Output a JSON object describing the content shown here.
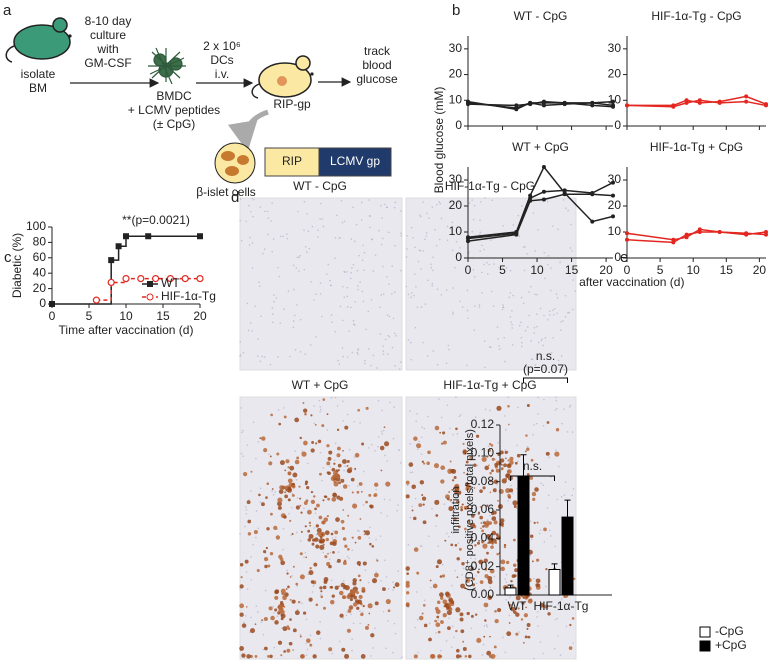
{
  "panel_labels": [
    "a",
    "b",
    "c",
    "d",
    "e"
  ],
  "diagram": {
    "isolate": [
      "isolate",
      "BM"
    ],
    "culture": [
      "8-10 day",
      "culture",
      "with",
      "GM-CSF"
    ],
    "bmdc": [
      "BMDC",
      "+ LCMV peptides",
      "(± CpG)"
    ],
    "transfer": [
      "2 x 10⁶",
      "DCs",
      "i.v."
    ],
    "mouse": "RIP-gp",
    "readout": [
      "track",
      "blood",
      "glucose"
    ],
    "islet": "β-islet cells",
    "construct": [
      "RIP",
      "LCMV gp"
    ]
  },
  "panel_b": {
    "y_label": "Blood glucose (mM)",
    "x_label": "Time after vaccination (d)"
  },
  "histology": {
    "titles": [
      "WT - CpG",
      "HIF-1α-Tg - CpG",
      "WT + CpG",
      "HIF-1α-Tg + CpG"
    ]
  },
  "chart_data": [
    {
      "type": "line",
      "title": "WT - CpG",
      "x": [
        0,
        7,
        9,
        11,
        14,
        18,
        21
      ],
      "series": [
        {
          "color": "#222222",
          "values": [
            9,
            7,
            9,
            9,
            9,
            9,
            9.5
          ]
        },
        {
          "color": "#222222",
          "values": [
            8.5,
            8,
            8.5,
            9.5,
            9,
            8,
            7.5
          ]
        },
        {
          "color": "#222222",
          "values": [
            9.5,
            6.5,
            9,
            8,
            8.5,
            9,
            8
          ]
        }
      ],
      "xlim": [
        0,
        21
      ],
      "ylim": [
        0,
        35
      ],
      "xticks": [
        0,
        5,
        10,
        15,
        20
      ],
      "yticks": [
        0,
        10,
        20,
        30
      ],
      "xticklabels": false
    },
    {
      "type": "line",
      "title": "HIF-1α-Tg - CpG",
      "x": [
        0,
        7,
        9,
        11,
        14,
        18,
        21
      ],
      "series": [
        {
          "color": "#e3261f",
          "values": [
            8,
            8,
            10,
            9,
            9.5,
            11.5,
            8.5
          ]
        },
        {
          "color": "#e3261f",
          "values": [
            8,
            7.5,
            9,
            10,
            9,
            9.5,
            8
          ]
        }
      ],
      "xlim": [
        0,
        21
      ],
      "ylim": [
        0,
        35
      ],
      "xticks": [
        0,
        5,
        10,
        15,
        20
      ],
      "yticks": [
        0,
        10,
        20,
        30
      ],
      "xticklabels": false
    },
    {
      "type": "line",
      "title": "WT + CpG",
      "x": [
        0,
        7,
        9,
        11,
        14,
        18,
        21
      ],
      "series": [
        {
          "color": "#222222",
          "values": [
            8,
            10,
            24,
            35,
            25,
            14,
            16
          ]
        },
        {
          "color": "#222222",
          "values": [
            7.5,
            9.5,
            23,
            25.5,
            26,
            25,
            29
          ]
        },
        {
          "color": "#222222",
          "values": [
            6.5,
            9,
            22,
            22.5,
            24.5,
            24.5,
            24
          ]
        }
      ],
      "xlim": [
        0,
        21
      ],
      "ylim": [
        0,
        35
      ],
      "xticks": [
        0,
        5,
        10,
        15,
        20
      ],
      "yticks": [
        0,
        10,
        20,
        30
      ]
    },
    {
      "type": "line",
      "title": "HIF-1α-Tg + CpG",
      "x": [
        0,
        7,
        9,
        11,
        14,
        18,
        21
      ],
      "series": [
        {
          "color": "#e3261f",
          "values": [
            9.5,
            7,
            8,
            11,
            10,
            9.5,
            9
          ]
        },
        {
          "color": "#e3261f",
          "values": [
            7,
            6,
            9,
            10,
            10,
            9,
            10
          ]
        }
      ],
      "xlim": [
        0,
        21
      ],
      "ylim": [
        0,
        35
      ],
      "xticks": [
        0,
        5,
        10,
        15,
        20
      ],
      "yticks": [
        0,
        10,
        20,
        30
      ]
    },
    {
      "type": "line",
      "step": true,
      "y_label": "Diabetic (%)",
      "x_label": "Time after vaccination (d)",
      "annotation": "**(p=0.0021)",
      "legend": "lower right",
      "series": [
        {
          "name": "WT",
          "color": "#222222",
          "marker": "square",
          "x": [
            0,
            8,
            9,
            10,
            13,
            20
          ],
          "values": [
            0,
            57,
            75,
            88,
            88,
            88
          ]
        },
        {
          "name": "HIF-1α-Tg",
          "color": "#e3261f",
          "marker": "circle-open",
          "dash": true,
          "x": [
            6,
            8,
            10,
            12,
            14,
            16,
            18,
            20
          ],
          "values": [
            5,
            28,
            33,
            33,
            33,
            33,
            33,
            33
          ]
        }
      ],
      "xlim": [
        0,
        20
      ],
      "ylim": [
        0,
        100
      ],
      "xticks": [
        0,
        5,
        10,
        15,
        20
      ],
      "yticks": [
        0,
        20,
        40,
        60,
        80,
        100
      ]
    },
    {
      "type": "bar",
      "y_label": [
        "infiltration",
        "(CD8⁺ positive pixels/total pixels)"
      ],
      "categories": [
        "WT",
        "HIF-1α-Tg"
      ],
      "legend": "below",
      "series": [
        {
          "name": "-CpG",
          "color": "#ffffff",
          "values": [
            0.005,
            0.018
          ],
          "errors": [
            0.002,
            0.004
          ]
        },
        {
          "name": "+CpG",
          "color": "#000000",
          "values": [
            0.084,
            0.055
          ],
          "errors": [
            0.015,
            0.012
          ]
        }
      ],
      "annotations": [
        "n.s.",
        "(p=0.07)",
        "n.s."
      ],
      "ylim": [
        0,
        0.12
      ],
      "yticks": [
        {
          "value": 0,
          "label": "0.00"
        },
        {
          "value": 0.02,
          "label": "0.02"
        },
        {
          "value": 0.04,
          "label": "0.04"
        },
        {
          "value": 0.06,
          "label": "0.06"
        },
        {
          "value": 0.08,
          "label": "0.08"
        },
        {
          "value": 0.1,
          "label": "0.10"
        },
        {
          "value": 0.12,
          "label": "0.12"
        }
      ]
    }
  ]
}
